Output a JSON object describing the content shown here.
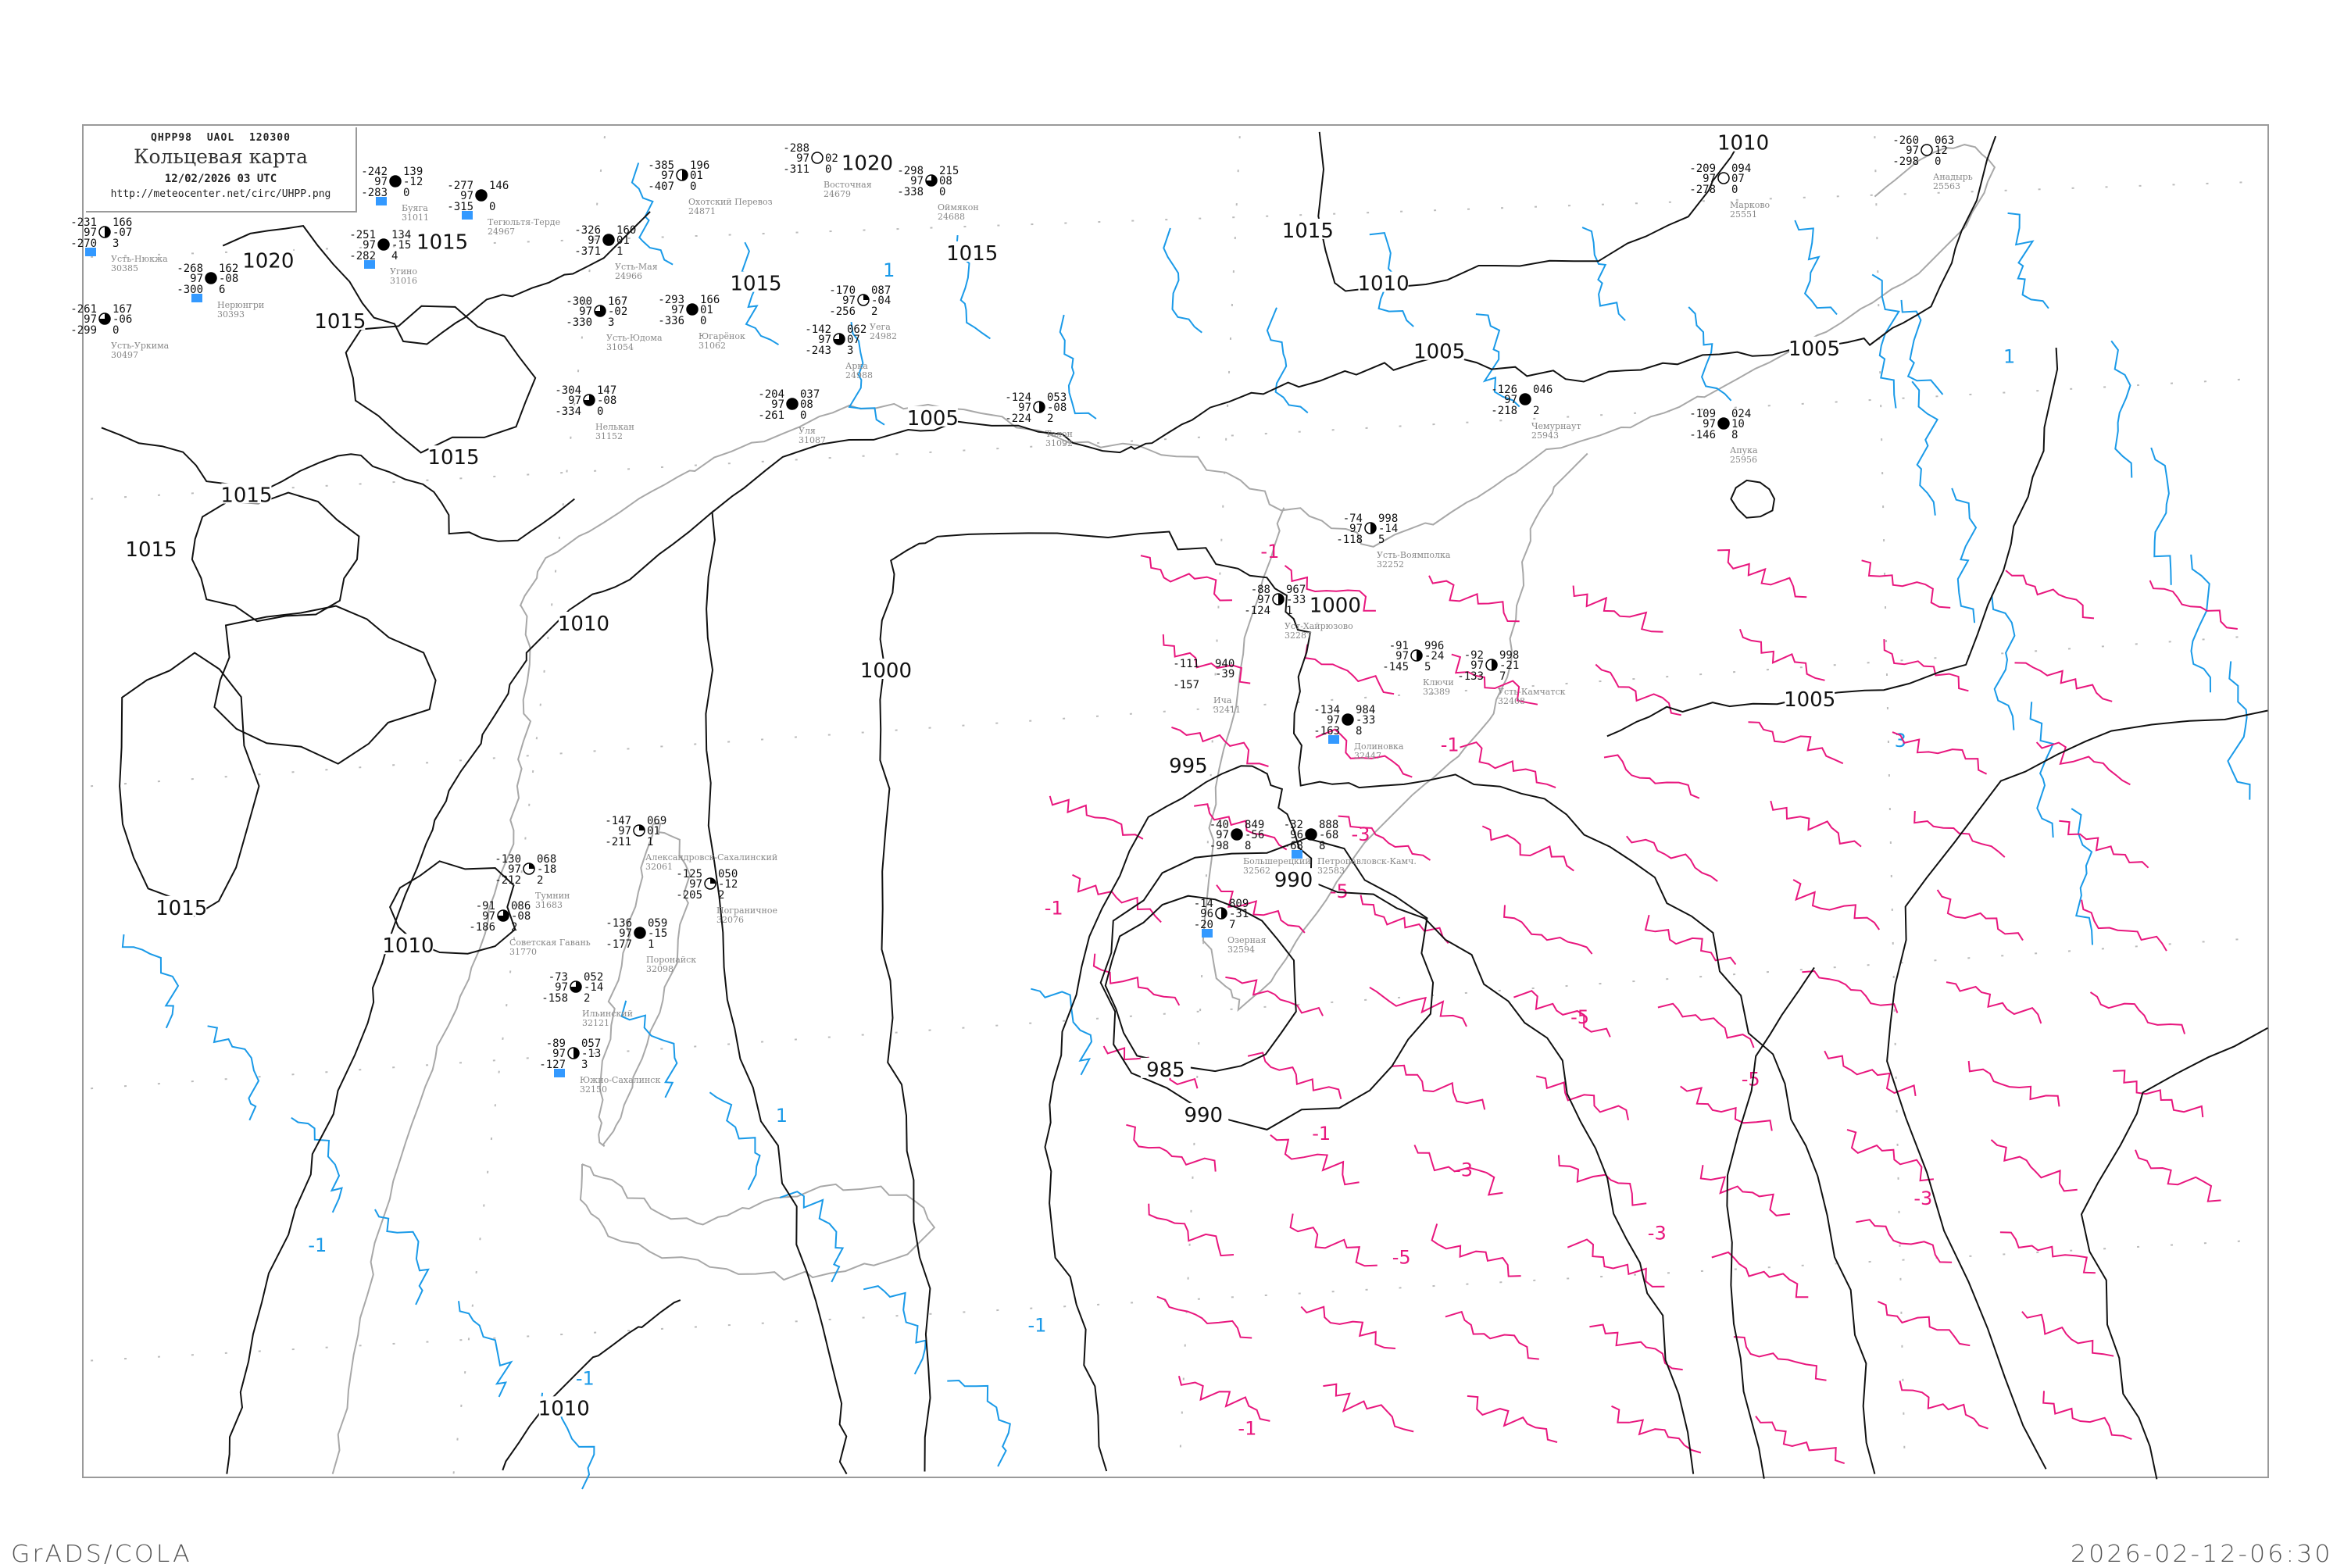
{
  "title": {
    "code_line": "QHPP98   UAOL   120300",
    "main": "Кольцевая карта",
    "date": "12/02/2026 03 UTC",
    "url": "http://meteocenter.net/circ/UHPP.png"
  },
  "footer": {
    "left": "GrADS/COLA",
    "right": "2026-02-12-06:30"
  },
  "colors": {
    "isobar": "#111111",
    "isotherm_negative": "#e8177e",
    "isotherm_positive": "#1a9ae8",
    "coastline": "#a8a8a8",
    "precip_marker": "#3399ff"
  },
  "isobar_labels": [
    "1020",
    "1015",
    "1015",
    "1015",
    "1015",
    "1015",
    "1015",
    "1010",
    "1010",
    "1020",
    "1015",
    "1015",
    "1015",
    "1010",
    "1010",
    "1005",
    "1005",
    "1005",
    "1005",
    "1000",
    "1000",
    "995",
    "990",
    "990",
    "985",
    "1010"
  ],
  "isotherm_labels_negative": [
    "-1",
    "-1",
    "-3",
    "-5",
    "-5",
    "-5",
    "-3",
    "-3",
    "-3",
    "-5",
    "-1",
    "-1",
    "-1"
  ],
  "isotherm_labels_positive": [
    "1",
    "1",
    "3",
    "-1",
    "-1",
    "-1",
    "1"
  ],
  "stations": [
    {
      "name": "Усть-Воямполка",
      "id": "32252",
      "t": "-74",
      "vv": "97",
      "td": "-118",
      "p": "998",
      "dp": "-14",
      "nh": "5",
      "cover": 0.5
    },
    {
      "name": "Уст-Хайрюзово",
      "id": "32287",
      "t": "-88",
      "vv": "97",
      "td": "-124",
      "p": "967",
      "dp": "-33",
      "nh": "1",
      "cover": 0.5
    },
    {
      "name": "Ключи",
      "id": "32389",
      "t": "-91",
      "vv": "97",
      "td": "-145",
      "p": "996",
      "dp": "-24",
      "nh": "5",
      "cover": 0.5
    },
    {
      "name": "Усть-Камчатск",
      "id": "32408",
      "t": "-92",
      "vv": "97",
      "td": "-133",
      "p": "998",
      "dp": "-21",
      "nh": "7",
      "cover": 0.5
    },
    {
      "name": "Долиновка",
      "id": "32447",
      "t": "-134",
      "vv": "97",
      "td": "-163",
      "p": "984",
      "dp": "-33",
      "nh": "8",
      "cover": 1,
      "precip": true
    },
    {
      "name": "Ича",
      "id": "32411",
      "t": "-111",
      "vv": "",
      "td": "-157",
      "p": "940",
      "dp": "-39",
      "nh": "",
      "cover": null
    },
    {
      "name": "Большерецкий",
      "id": "32562",
      "t": "-40",
      "vv": "97",
      "td": "-98",
      "p": "849",
      "dp": "-56",
      "nh": "8",
      "cover": 1
    },
    {
      "name": "Петропавловск-Камч.",
      "id": "32583",
      "t": "-32",
      "vv": "96",
      "td": "-68",
      "p": "888",
      "dp": "-68",
      "nh": "8",
      "cover": 1,
      "precip": true
    },
    {
      "name": "Озерная",
      "id": "32594",
      "t": "-14",
      "vv": "96",
      "td": "-20",
      "p": "809",
      "dp": "-31",
      "nh": "7",
      "cover": 0.5,
      "precip": true
    },
    {
      "name": "Усть-Нюкжа",
      "id": "30385",
      "t": "-231",
      "vv": "97",
      "td": "-270",
      "p": "166",
      "dp": "-07",
      "nh": "3",
      "cover": 0.5,
      "precip": true
    },
    {
      "name": "Нерюнгри",
      "id": "30393",
      "t": "-268",
      "vv": "97",
      "td": "-300",
      "p": "162",
      "dp": "-08",
      "nh": "6",
      "cover": 1,
      "precip": true
    },
    {
      "name": "Усть-Уркима",
      "id": "30497",
      "t": "-261",
      "vv": "97",
      "td": "-299",
      "p": "167",
      "dp": "-06",
      "nh": "0",
      "cover": 0.75
    },
    {
      "name": "Угино",
      "id": "31016",
      "t": "-251",
      "vv": "97",
      "td": "-282",
      "p": "134",
      "dp": "-15",
      "nh": "4",
      "cover": 1,
      "precip": true
    },
    {
      "name": "Буяга",
      "id": "31011",
      "t": "-242",
      "vv": "97",
      "td": "-283",
      "p": "139",
      "dp": "-12",
      "nh": "0",
      "cover": 1,
      "precip": true
    },
    {
      "name": "Тегюльтя-Терде",
      "id": "24967",
      "t": "-277",
      "vv": "97",
      "td": "-315",
      "p": "146",
      "dp": "",
      "nh": "0",
      "cover": 1,
      "precip": true
    },
    {
      "name": "Охотский Перевоз",
      "id": "24871",
      "t": "-385",
      "vv": "97",
      "td": "-407",
      "p": "196",
      "dp": "01",
      "nh": "0",
      "cover": 0.5
    },
    {
      "name": "Восточная",
      "id": "24679",
      "t": "-288",
      "vv": "97",
      "td": "-311",
      "p": "",
      "dp": "02",
      "nh": "0",
      "cover": 0
    },
    {
      "name": "Оймякон",
      "id": "24688",
      "t": "-298",
      "vv": "97",
      "td": "-338",
      "p": "215",
      "dp": "08",
      "nh": "0",
      "cover": 0.75
    },
    {
      "name": "Усть-Мая",
      "id": "24966",
      "t": "-326",
      "vv": "97",
      "td": "-371",
      "p": "160",
      "dp": "01",
      "nh": "1",
      "cover": 1
    },
    {
      "name": "Усть-Юдома",
      "id": "31054",
      "t": "-300",
      "vv": "97",
      "td": "-330",
      "p": "167",
      "dp": "-02",
      "nh": "3",
      "cover": 0.75
    },
    {
      "name": "Югарёнок",
      "id": "31062",
      "t": "-293",
      "vv": "97",
      "td": "-336",
      "p": "166",
      "dp": "01",
      "nh": "0",
      "cover": 1
    },
    {
      "name": "Нелькан",
      "id": "31152",
      "t": "-304",
      "vv": "97",
      "td": "-334",
      "p": "147",
      "dp": "-08",
      "nh": "0",
      "cover": 0.75
    },
    {
      "name": "Уля",
      "id": "31087",
      "t": "-204",
      "vv": "97",
      "td": "-261",
      "p": "037",
      "dp": "08",
      "nh": "0",
      "cover": 1
    },
    {
      "name": "Арка",
      "id": "24988",
      "t": "-142",
      "vv": "97",
      "td": "-243",
      "p": "062",
      "dp": "07",
      "nh": "3",
      "cover": 0.75
    },
    {
      "name": "Уега",
      "id": "24982",
      "t": "-170",
      "vv": "97",
      "td": "-256",
      "p": "087",
      "dp": "-04",
      "nh": "2",
      "cover": 0.25
    },
    {
      "name": "Талон",
      "id": "31092",
      "t": "-124",
      "vv": "97",
      "td": "-224",
      "p": "053",
      "dp": "-08",
      "nh": "2",
      "cover": 0.5
    },
    {
      "name": "Марково",
      "id": "25551",
      "t": "-209",
      "vv": "97",
      "td": "-278",
      "p": "094",
      "dp": "07",
      "nh": "0",
      "cover": 0
    },
    {
      "name": "Анадырь",
      "id": "25563",
      "t": "-260",
      "vv": "97",
      "td": "-298",
      "p": "063",
      "dp": "12",
      "nh": "0",
      "cover": 0
    },
    {
      "name": "Чемурнаут",
      "id": "25943",
      "t": "-126",
      "vv": "97",
      "td": "-218",
      "p": "046",
      "dp": "",
      "nh": "2",
      "cover": 1
    },
    {
      "name": "Апука",
      "id": "25956",
      "t": "-109",
      "vv": "97",
      "td": "-146",
      "p": "024",
      "dp": "10",
      "nh": "8",
      "cover": 1
    },
    {
      "name": "Тумнин",
      "id": "31683",
      "t": "-130",
      "vv": "97",
      "td": "-212",
      "p": "068",
      "dp": "-18",
      "nh": "2",
      "cover": 0.25
    },
    {
      "name": "Советская Гавань",
      "id": "31770",
      "t": "-91",
      "vv": "97",
      "td": "-186",
      "p": "086",
      "dp": "-08",
      "nh": "2",
      "cover": 0.75
    },
    {
      "name": "Александровск-Сахалинский",
      "id": "32061",
      "t": "-147",
      "vv": "97",
      "td": "-211",
      "p": "069",
      "dp": "01",
      "nh": "1",
      "cover": 0.25
    },
    {
      "name": "Пограничное",
      "id": "32076",
      "t": "-125",
      "vv": "97",
      "td": "-205",
      "p": "050",
      "dp": "-12",
      "nh": "2",
      "cover": 0.25
    },
    {
      "name": "Поронайск",
      "id": "32098",
      "t": "-136",
      "vv": "97",
      "td": "-177",
      "p": "059",
      "dp": "-15",
      "nh": "1",
      "cover": 1
    },
    {
      "name": "Ильинский",
      "id": "32121",
      "t": "-73",
      "vv": "97",
      "td": "-158",
      "p": "052",
      "dp": "-14",
      "nh": "2",
      "cover": 0.75
    },
    {
      "name": "Южно-Сахалинск",
      "id": "32150",
      "t": "-89",
      "vv": "97",
      "td": "-127",
      "p": "057",
      "dp": "-13",
      "nh": "3",
      "cover": 0.5,
      "precip": true
    }
  ]
}
